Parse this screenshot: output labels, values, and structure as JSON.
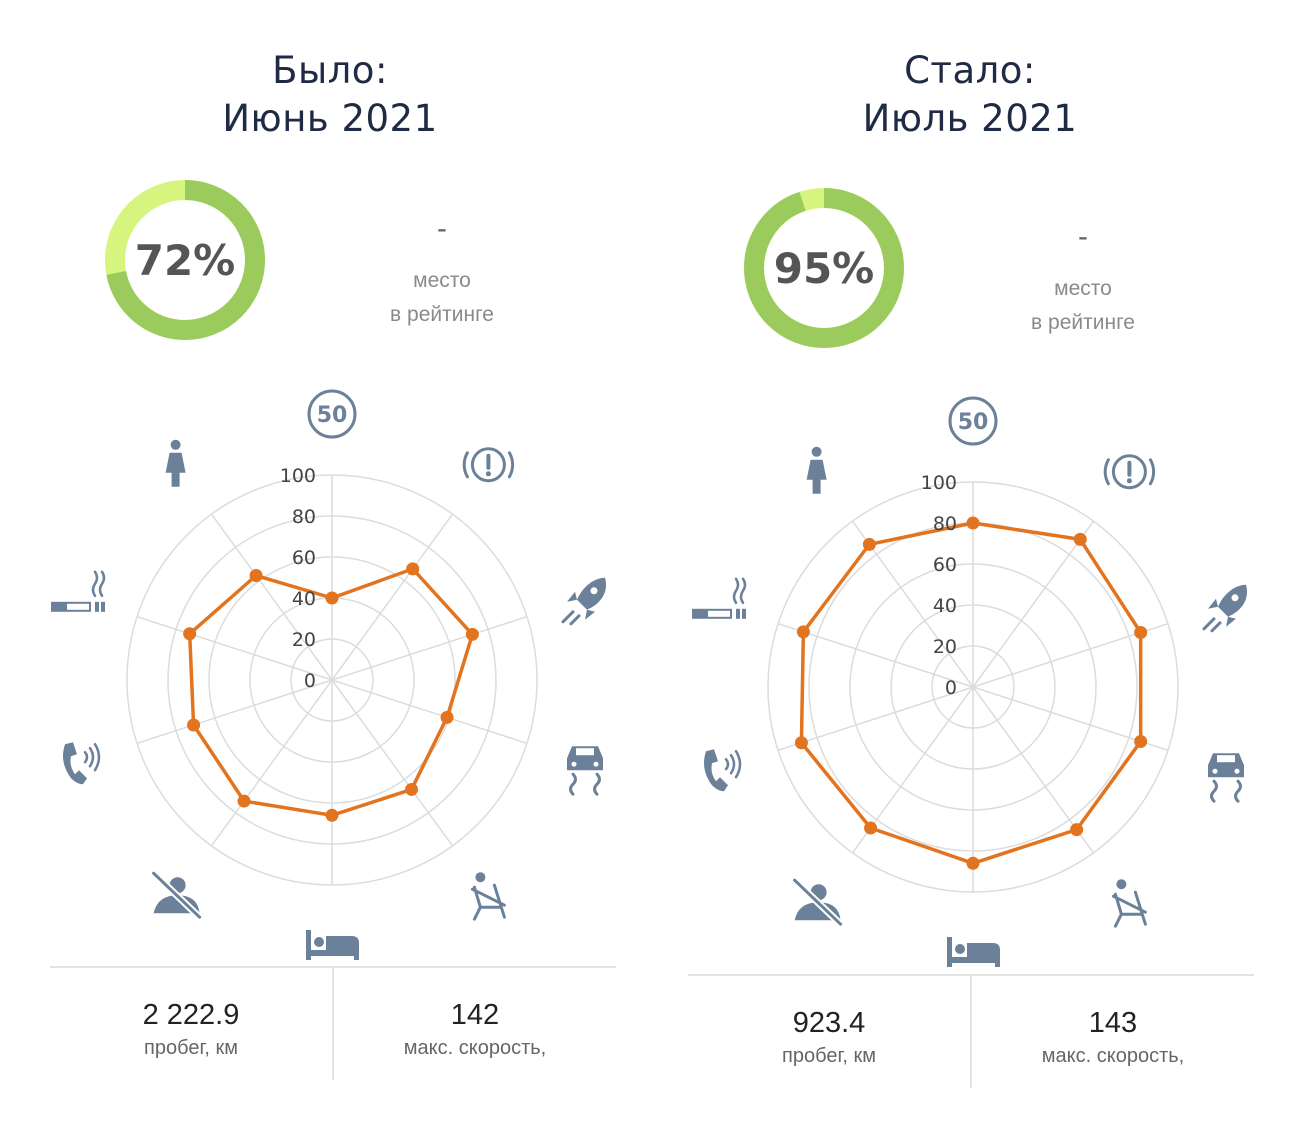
{
  "colors": {
    "title": "#1f2a44",
    "donut_main": "#9acb5c",
    "donut_light": "#d6f57e",
    "series": "#e2731f",
    "grid": "#dcdcdc",
    "icon": "#6b819a"
  },
  "axis": {
    "ticks": [
      "0",
      "20",
      "40",
      "60",
      "80",
      "100"
    ]
  },
  "icons": [
    {
      "name": "speed-limit-50-icon",
      "text": "50"
    },
    {
      "name": "warning-icon"
    },
    {
      "name": "rocket-icon"
    },
    {
      "name": "car-skid-icon"
    },
    {
      "name": "seatbelt-icon"
    },
    {
      "name": "sleep-bed-icon"
    },
    {
      "name": "no-driving-icon"
    },
    {
      "name": "phone-icon"
    },
    {
      "name": "smoking-icon"
    },
    {
      "name": "passenger-icon"
    }
  ],
  "panels": [
    {
      "title_line1": "Было:",
      "title_line2": "Июнь 2021",
      "score_text": "72%",
      "score": 72,
      "rank_value": "-",
      "rank_label_1": "место",
      "rank_label_2": "в рейтинге",
      "mileage_value": "2 222.9",
      "mileage_label": "пробег, км",
      "speed_value": "142",
      "speed_label": "макс. скорость,"
    },
    {
      "title_line1": "Стало:",
      "title_line2": "Июль 2021",
      "score_text": "95%",
      "score": 95,
      "rank_value": "-",
      "rank_label_1": "место",
      "rank_label_2": "в рейтинге",
      "mileage_value": "923.4",
      "mileage_label": "пробег, км",
      "speed_value": "143",
      "speed_label": "макс. скорость,"
    }
  ],
  "chart_data": [
    {
      "type": "radar",
      "rmax": 100,
      "ticks": [
        0,
        20,
        40,
        60,
        80,
        100
      ],
      "values": [
        40,
        67,
        72,
        59,
        66,
        66,
        73,
        71,
        73,
        63
      ]
    },
    {
      "type": "radar",
      "rmax": 100,
      "ticks": [
        0,
        20,
        40,
        60,
        80,
        100
      ],
      "values": [
        80,
        89,
        86,
        86,
        86,
        86,
        85,
        88,
        87,
        86
      ]
    }
  ]
}
